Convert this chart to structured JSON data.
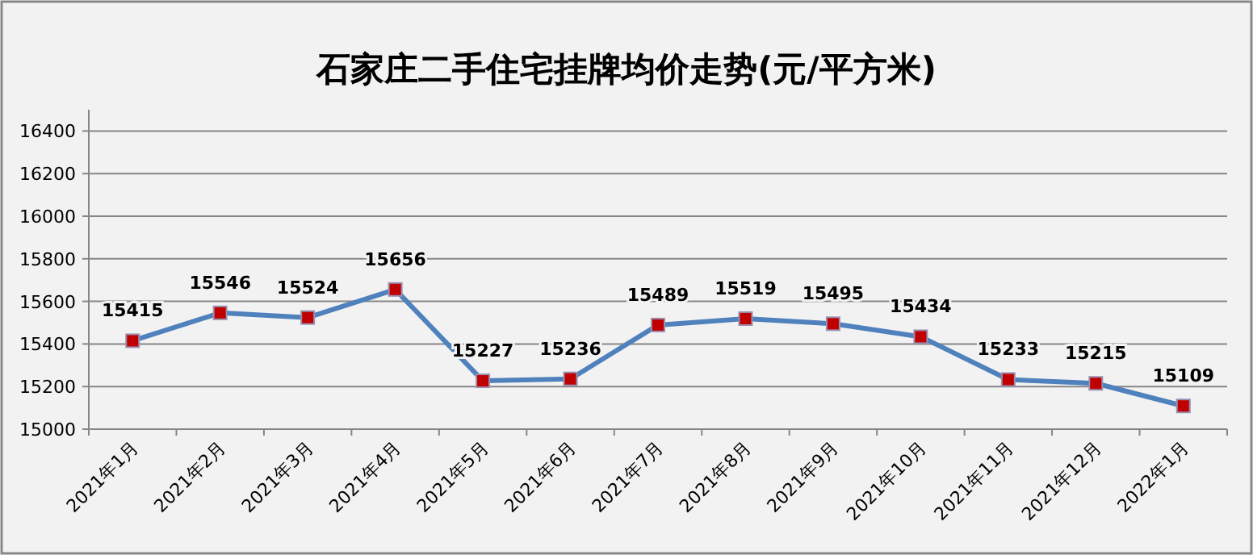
{
  "chart_data": {
    "type": "line",
    "title": "石家庄二手住宅挂牌均价走势(元/平方米)",
    "categories": [
      "2021年1月",
      "2021年2月",
      "2021年3月",
      "2021年4月",
      "2021年5月",
      "2021年6月",
      "2021年7月",
      "2021年8月",
      "2021年9月",
      "2021年10月",
      "2021年11月",
      "2021年12月",
      "2022年1月"
    ],
    "series": [
      {
        "color": "#4f81bd",
        "values": [
          15415,
          15546,
          15524,
          15656,
          15227,
          15236,
          15489,
          15519,
          15495,
          15434,
          15233,
          15215,
          15109
        ]
      }
    ],
    "ylim": [
      15000,
      16500
    ],
    "yticks": [
      15000,
      15200,
      15400,
      15600,
      15800,
      16000,
      16200,
      16400
    ],
    "grid": "y",
    "marker": "square",
    "line_style": "solid",
    "data_labels": true
  }
}
